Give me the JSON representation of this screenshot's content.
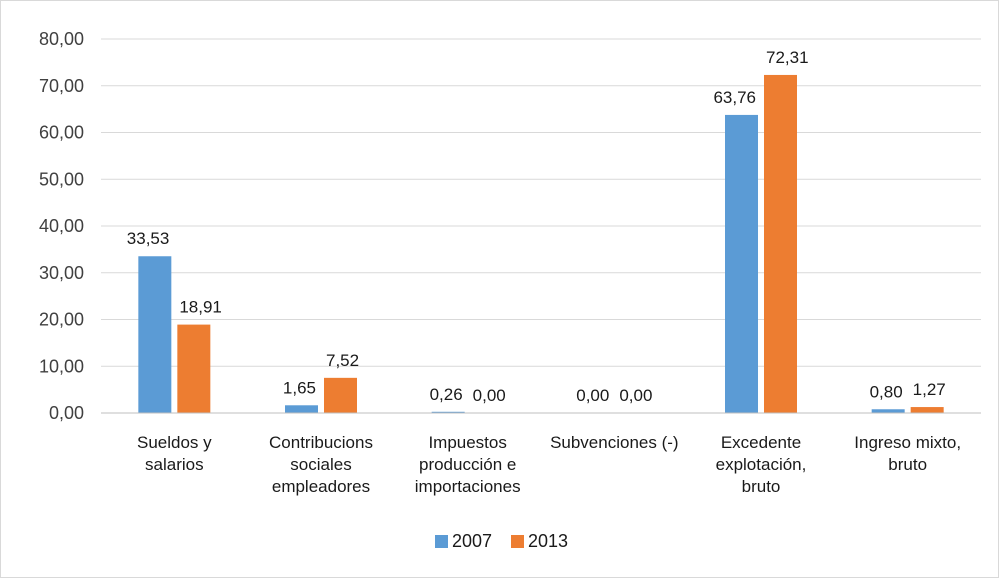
{
  "chart_data": {
    "type": "bar",
    "title": "",
    "xlabel": "",
    "ylabel": "",
    "ylim": [
      0,
      80
    ],
    "yticks": [
      "0,00",
      "10,00",
      "20,00",
      "30,00",
      "40,00",
      "50,00",
      "60,00",
      "70,00",
      "80,00"
    ],
    "grid": true,
    "legend_position": "bottom",
    "categories": [
      [
        "Sueldos y",
        "salarios"
      ],
      [
        "Contribucions",
        "sociales",
        "empleadores"
      ],
      [
        "Impuestos",
        "producción e",
        "importaciones"
      ],
      [
        "Subvenciones (-)"
      ],
      [
        "Excedente",
        "explotación,",
        "bruto"
      ],
      [
        "Ingreso mixto,",
        "bruto"
      ]
    ],
    "series": [
      {
        "name": "2007",
        "color": "#5b9bd5",
        "values": [
          33.53,
          1.65,
          0.26,
          0.0,
          63.76,
          0.8
        ],
        "labels": [
          "33,53",
          "1,65",
          "0,26",
          "0,00",
          "63,76",
          "0,80"
        ]
      },
      {
        "name": "2013",
        "color": "#ed7d31",
        "values": [
          18.91,
          7.52,
          0.0,
          0.0,
          72.31,
          1.27
        ],
        "labels": [
          "18,91",
          "7,52",
          "0,00",
          "0,00",
          "72,31",
          "1,27"
        ]
      }
    ],
    "gridline_color": "#d9d9d9",
    "axis_line_color": "#bfbfbf"
  }
}
